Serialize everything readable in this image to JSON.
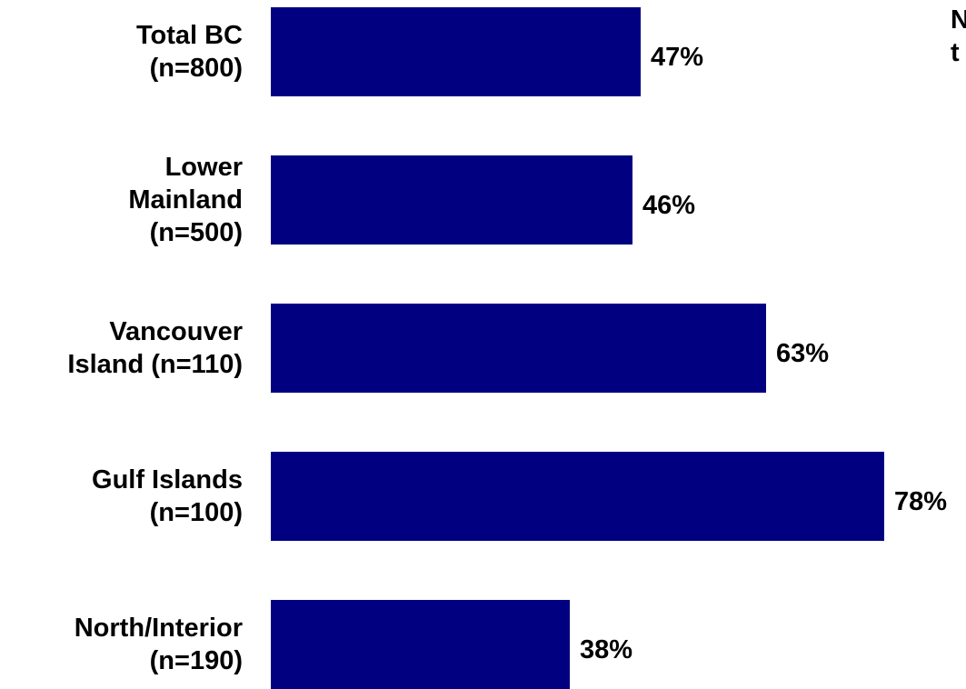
{
  "chart_data": {
    "type": "bar",
    "orientation": "horizontal",
    "categories": [
      "Total BC\n(n=800)",
      "Lower\nMainland\n(n=500)",
      "Vancouver\nIsland (n=110)",
      "Gulf Islands\n(n=100)",
      "North/Interior\n(n=190)"
    ],
    "values": [
      47,
      46,
      63,
      78,
      38
    ],
    "value_labels": [
      "47%",
      "46%",
      "63%",
      "78%",
      "38%"
    ],
    "title": "",
    "xlabel": "",
    "ylabel": "",
    "xlim": [
      0,
      78
    ],
    "grid": false,
    "legend": "none",
    "bar_color": "#000080",
    "annotations": [
      "N\nt"
    ]
  }
}
